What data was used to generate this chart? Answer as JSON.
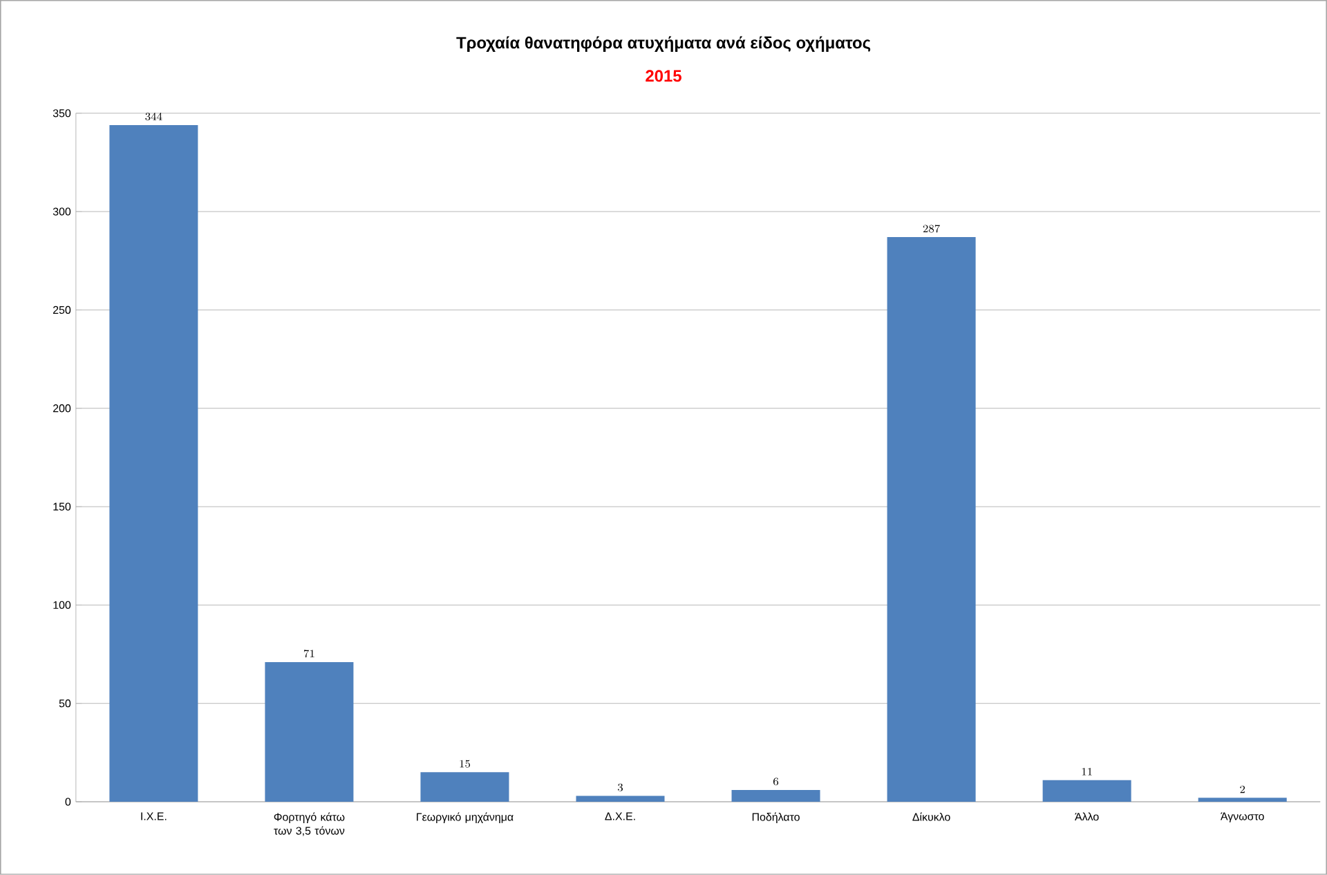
{
  "chart_data": {
    "type": "bar",
    "title": "Τροχαία θανατηφόρα ατυχήματα ανά είδος οχήματος",
    "subtitle": "2015",
    "categories": [
      "Ι.Χ.Ε.",
      "Φορτηγό κάτω των 3,5 τόνων",
      "Γεωργικό μηχάνημα",
      "Δ.Χ.Ε.",
      "Ποδήλατο",
      "Δίκυκλο",
      "Άλλο",
      "Άγνωστο"
    ],
    "values": [
      344,
      71,
      15,
      3,
      6,
      287,
      11,
      2
    ],
    "color": "#4f81bd",
    "ylim": [
      0,
      350
    ],
    "yticks": [
      0,
      50,
      100,
      150,
      200,
      250,
      300,
      350
    ],
    "grid": "y",
    "data_labels": true
  }
}
